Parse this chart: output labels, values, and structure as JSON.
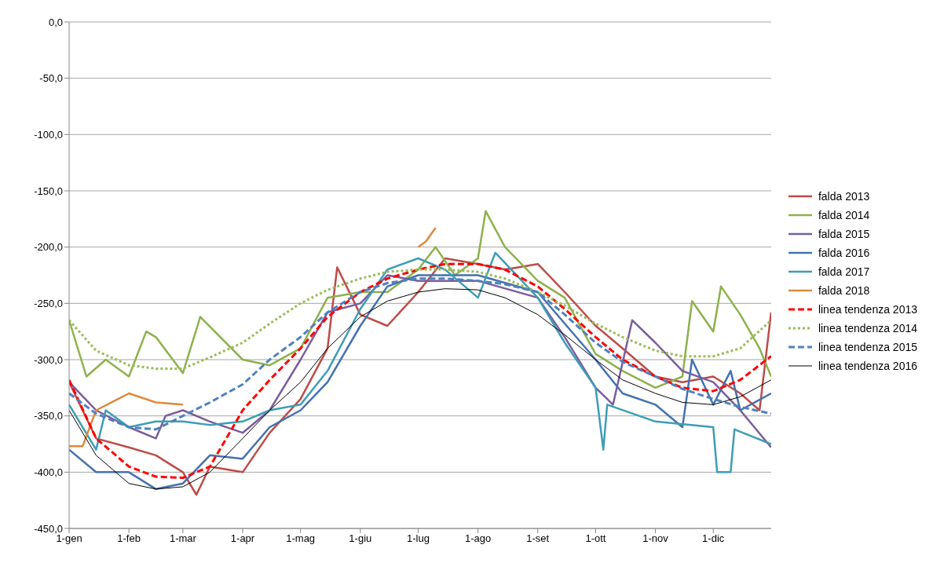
{
  "chart_data": {
    "type": "line",
    "xlim": [
      "--01-01",
      "--12-31"
    ],
    "xticks": [
      {
        "value": "--01-01",
        "label": "1-gen"
      },
      {
        "value": "--02-01",
        "label": "1-feb"
      },
      {
        "value": "--03-01",
        "label": "1-mar"
      },
      {
        "value": "--04-01",
        "label": "1-apr"
      },
      {
        "value": "--05-01",
        "label": "1-mag"
      },
      {
        "value": "--06-01",
        "label": "1-giu"
      },
      {
        "value": "--07-01",
        "label": "1-lug"
      },
      {
        "value": "--08-01",
        "label": "1-ago"
      },
      {
        "value": "--09-01",
        "label": "1-set"
      },
      {
        "value": "--10-01",
        "label": "1-ott"
      },
      {
        "value": "--11-01",
        "label": "1-nov"
      },
      {
        "value": "--12-01",
        "label": "1-dic"
      }
    ],
    "ylim": [
      -450,
      0
    ],
    "yticks": [
      {
        "value": -450,
        "label": "-450,0"
      },
      {
        "value": -400,
        "label": "-400,0"
      },
      {
        "value": -350,
        "label": "-350,0"
      },
      {
        "value": -300,
        "label": "-300,0"
      },
      {
        "value": -250,
        "label": "-250,0"
      },
      {
        "value": -200,
        "label": "-200,0"
      },
      {
        "value": -150,
        "label": "-150,0"
      },
      {
        "value": -100,
        "label": "-100,0"
      },
      {
        "value": -50,
        "label": "-50,0"
      },
      {
        "value": 0,
        "label": "0,0"
      }
    ],
    "grid": "y",
    "legend": "right",
    "marker": "none",
    "series": [
      {
        "name": "falda 2013",
        "color": "#be4b48",
        "line_style": "solid",
        "x": [
          "--01-01",
          "--01-15",
          "--02-01",
          "--02-15",
          "--03-01",
          "--03-08",
          "--03-15",
          "--04-01",
          "--04-15",
          "--05-01",
          "--05-15",
          "--05-20",
          "--06-01",
          "--06-15",
          "--07-01",
          "--07-15",
          "--08-01",
          "--08-15",
          "--09-01",
          "--09-15",
          "--10-01",
          "--10-15",
          "--11-01",
          "--11-15",
          "--12-01",
          "--12-15",
          "--12-25",
          "--12-31"
        ],
        "values": [
          -320,
          -370,
          -378,
          -385,
          -400,
          -420,
          -395,
          -400,
          -365,
          -335,
          -290,
          -218,
          -260,
          -270,
          -240,
          -210,
          -215,
          -220,
          -215,
          -240,
          -270,
          -290,
          -315,
          -320,
          -315,
          -330,
          -345,
          -258
        ]
      },
      {
        "name": "falda 2014",
        "color": "#8db14c",
        "line_style": "solid",
        "x": [
          "--01-01",
          "--01-10",
          "--01-20",
          "--02-01",
          "--02-10",
          "--02-15",
          "--03-01",
          "--03-10",
          "--04-01",
          "--04-15",
          "--05-01",
          "--05-15",
          "--06-01",
          "--06-15",
          "--07-01",
          "--07-10",
          "--07-20",
          "--08-01",
          "--08-05",
          "--08-15",
          "--09-01",
          "--09-15",
          "--10-01",
          "--10-15",
          "--11-01",
          "--11-15",
          "--11-20",
          "--12-01",
          "--12-05",
          "--12-15",
          "--12-25",
          "--12-31"
        ],
        "values": [
          -265,
          -315,
          -300,
          -315,
          -275,
          -280,
          -312,
          -262,
          -300,
          -305,
          -290,
          -245,
          -240,
          -240,
          -220,
          -200,
          -225,
          -210,
          -168,
          -200,
          -230,
          -245,
          -295,
          -310,
          -325,
          -315,
          -248,
          -275,
          -235,
          -260,
          -290,
          -315
        ]
      },
      {
        "name": "falda 2015",
        "color": "#7a5c9e",
        "line_style": "solid",
        "x": [
          "--01-01",
          "--01-15",
          "--02-01",
          "--02-15",
          "--02-20",
          "--03-01",
          "--03-15",
          "--04-01",
          "--04-15",
          "--05-01",
          "--05-15",
          "--06-01",
          "--06-15",
          "--07-01",
          "--08-01",
          "--09-01",
          "--09-15",
          "--10-01",
          "--10-10",
          "--10-20",
          "--11-01",
          "--11-15",
          "--12-01",
          "--12-15",
          "--12-31"
        ],
        "values": [
          -320,
          -345,
          -360,
          -370,
          -350,
          -345,
          -355,
          -365,
          -345,
          -300,
          -258,
          -250,
          -225,
          -230,
          -230,
          -245,
          -280,
          -325,
          -340,
          -265,
          -285,
          -310,
          -320,
          -345,
          -378
        ]
      },
      {
        "name": "falda 2016",
        "color": "#4472b0",
        "line_style": "solid",
        "x": [
          "--01-01",
          "--01-15",
          "--02-01",
          "--02-15",
          "--03-01",
          "--03-15",
          "--04-01",
          "--04-15",
          "--05-01",
          "--05-15",
          "--06-01",
          "--06-15",
          "--07-01",
          "--08-01",
          "--09-01",
          "--10-01",
          "--10-15",
          "--11-01",
          "--11-15",
          "--11-20",
          "--12-01",
          "--12-10",
          "--12-15",
          "--12-31"
        ],
        "values": [
          -380,
          -400,
          -400,
          -415,
          -410,
          -385,
          -388,
          -360,
          -345,
          -320,
          -270,
          -235,
          -225,
          -225,
          -240,
          -300,
          -330,
          -340,
          -360,
          -300,
          -340,
          -310,
          -345,
          -330
        ]
      },
      {
        "name": "falda 2017",
        "color": "#3d9db5",
        "line_style": "solid",
        "x": [
          "--01-01",
          "--01-15",
          "--01-20",
          "--02-01",
          "--02-15",
          "--03-01",
          "--03-15",
          "--04-01",
          "--04-15",
          "--05-01",
          "--05-15",
          "--06-01",
          "--06-15",
          "--07-01",
          "--07-15",
          "--08-01",
          "--08-10",
          "--09-01",
          "--09-15",
          "--10-01",
          "--10-05",
          "--10-07",
          "--11-01",
          "--12-01",
          "--12-03",
          "--12-10",
          "--12-12",
          "--12-31"
        ],
        "values": [
          -340,
          -380,
          -345,
          -360,
          -355,
          -355,
          -358,
          -355,
          -345,
          -340,
          -310,
          -255,
          -220,
          -210,
          -220,
          -245,
          -205,
          -245,
          -285,
          -325,
          -380,
          -340,
          -355,
          -360,
          -400,
          -400,
          -362,
          -375
        ]
      },
      {
        "name": "falda 2018",
        "color": "#e0883a",
        "line_style": "solid",
        "x": [
          "--01-01",
          "--01-08",
          "--01-15",
          "--02-01",
          "--02-15",
          "--03-01",
          "--05-01",
          "--07-01",
          "--07-05",
          "--07-10"
        ],
        "values": [
          -377,
          -377,
          -345,
          -330,
          -338,
          -340,
          null,
          -200,
          -195,
          -183
        ]
      },
      {
        "name": "linea tendenza 2013",
        "color": "#ff0000",
        "line_style": "dashed",
        "x": [
          "--01-01",
          "--01-15",
          "--02-01",
          "--02-15",
          "--03-01",
          "--03-15",
          "--04-01",
          "--04-15",
          "--05-01",
          "--05-15",
          "--06-01",
          "--06-15",
          "--07-01",
          "--07-15",
          "--08-01",
          "--08-15",
          "--09-01",
          "--09-15",
          "--10-01",
          "--10-15",
          "--11-01",
          "--11-15",
          "--12-01",
          "--12-15",
          "--12-31"
        ],
        "values": [
          -318,
          -370,
          -395,
          -404,
          -405,
          -395,
          -345,
          -318,
          -290,
          -262,
          -240,
          -228,
          -220,
          -215,
          -215,
          -220,
          -235,
          -255,
          -280,
          -300,
          -315,
          -325,
          -328,
          -318,
          -297
        ]
      },
      {
        "name": "linea tendenza 2014",
        "color": "#9bbb59",
        "line_style": "dotted",
        "x": [
          "--01-01",
          "--01-15",
          "--02-01",
          "--02-15",
          "--03-01",
          "--03-15",
          "--04-01",
          "--04-15",
          "--05-01",
          "--05-15",
          "--06-01",
          "--06-15",
          "--07-01",
          "--07-15",
          "--08-01",
          "--08-15",
          "--09-01",
          "--09-15",
          "--10-01",
          "--10-15",
          "--11-01",
          "--11-15",
          "--12-01",
          "--12-15",
          "--12-31"
        ],
        "values": [
          -265,
          -292,
          -305,
          -308,
          -308,
          -298,
          -285,
          -268,
          -250,
          -238,
          -228,
          -222,
          -220,
          -220,
          -222,
          -228,
          -240,
          -252,
          -268,
          -280,
          -292,
          -297,
          -297,
          -290,
          -265
        ]
      },
      {
        "name": "linea tendenza 2015",
        "color": "#4f81bd",
        "line_style": "dashed",
        "x": [
          "--01-01",
          "--01-15",
          "--02-01",
          "--02-15",
          "--03-01",
          "--03-15",
          "--04-01",
          "--04-15",
          "--05-01",
          "--05-15",
          "--06-01",
          "--06-15",
          "--07-01",
          "--07-15",
          "--08-01",
          "--08-15",
          "--09-01",
          "--09-15",
          "--10-01",
          "--10-15",
          "--11-01",
          "--11-15",
          "--12-01",
          "--12-15",
          "--12-31"
        ],
        "values": [
          -330,
          -348,
          -360,
          -362,
          -350,
          -338,
          -322,
          -300,
          -280,
          -258,
          -240,
          -232,
          -228,
          -228,
          -230,
          -233,
          -240,
          -260,
          -285,
          -302,
          -315,
          -326,
          -335,
          -342,
          -348
        ]
      },
      {
        "name": "linea tendenza 2016",
        "color": "#000000",
        "line_style": "solid",
        "x": [
          "--01-01",
          "--01-15",
          "--02-01",
          "--02-15",
          "--03-01",
          "--03-15",
          "--04-01",
          "--04-15",
          "--05-01",
          "--05-15",
          "--06-01",
          "--06-15",
          "--07-01",
          "--07-15",
          "--08-01",
          "--08-15",
          "--09-01",
          "--09-15",
          "--10-01",
          "--10-15",
          "--11-01",
          "--11-15",
          "--12-01",
          "--12-15",
          "--12-31"
        ],
        "values": [
          -345,
          -385,
          -410,
          -415,
          -413,
          -400,
          -370,
          -345,
          -320,
          -290,
          -262,
          -248,
          -240,
          -237,
          -238,
          -245,
          -260,
          -278,
          -300,
          -318,
          -330,
          -338,
          -340,
          -333,
          -318
        ]
      }
    ]
  }
}
